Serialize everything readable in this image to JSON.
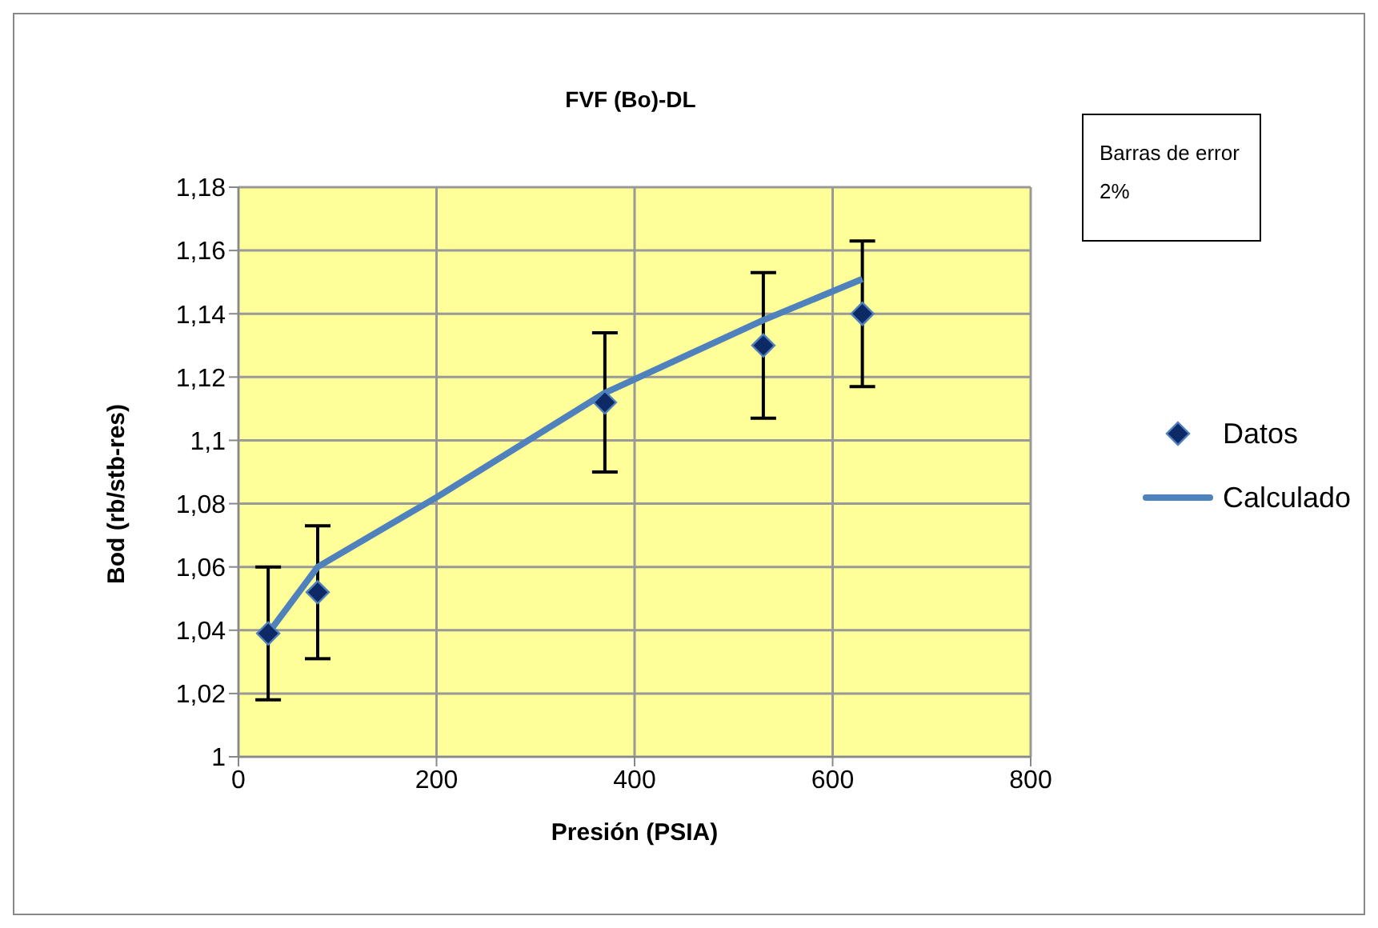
{
  "chart_data": {
    "type": "scatter",
    "title": "FVF (Bo)-DL",
    "xlabel": "Presión (PSIA)",
    "ylabel": "Bod (rb/stb-res)",
    "annotations": [
      "Barras de error 2%"
    ],
    "series": [
      {
        "name": "Datos",
        "color": "#0d2a66",
        "marker": "diamond",
        "x": [
          30,
          80,
          370,
          530,
          630
        ],
        "values": [
          1.039,
          1.052,
          1.112,
          1.13,
          1.14
        ],
        "errors": [
          0.021,
          0.021,
          0.022,
          0.023,
          0.023
        ]
      },
      {
        "name": "Calculado",
        "type": "line",
        "color": "#4f81bd",
        "marker": "none",
        "x": [
          30,
          80,
          200,
          370,
          530,
          630
        ],
        "values": [
          1.039,
          1.06,
          1.082,
          1.115,
          1.138,
          1.151
        ]
      }
    ],
    "xlim": [
      0,
      800
    ],
    "xticks": [
      0,
      200,
      400,
      600,
      800
    ],
    "ylim": [
      1,
      1.18
    ],
    "yticks": [
      1,
      {
        "value": 1.02,
        "label": "1,02"
      },
      {
        "value": 1.04,
        "label": "1,04"
      },
      {
        "value": 1.06,
        "label": "1,06"
      },
      {
        "value": 1.08,
        "label": "1,08"
      },
      {
        "value": 1.1,
        "label": "1,1"
      },
      {
        "value": 1.12,
        "label": "1,12"
      },
      {
        "value": 1.14,
        "label": "1,14"
      },
      {
        "value": 1.16,
        "label": "1,16"
      },
      {
        "value": 1.18,
        "label": "1,18"
      }
    ],
    "grid": true,
    "legend": "right"
  }
}
